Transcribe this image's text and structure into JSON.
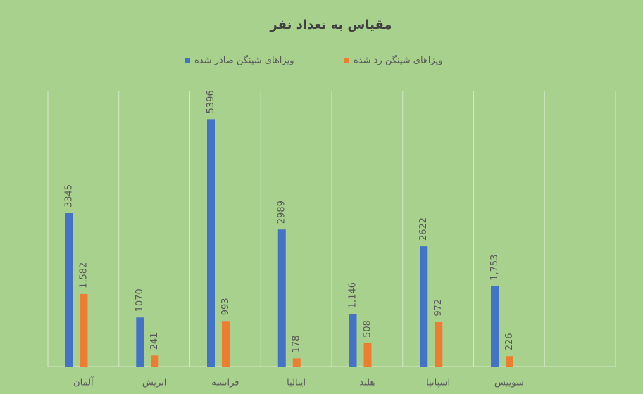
{
  "chart_data": {
    "type": "bar",
    "title": "مقیاس به تعداد نفر",
    "categories": [
      "آلمان",
      "اتریش",
      "فرانسه",
      "ایتالیا",
      "هلند",
      "اسپانیا",
      "سوییس",
      null
    ],
    "series": [
      {
        "name": "ویزاهای شینگن صادر شده",
        "color": "#4472c4",
        "values": [
          3345,
          1070,
          5396,
          2989,
          1146,
          2622,
          1753,
          null
        ],
        "value_labels": [
          "3345",
          "1070",
          "5396",
          "2989",
          "1,146",
          "2622",
          "1,753",
          null
        ]
      },
      {
        "name": "ویزاهای شینگن رد شده",
        "color": "#ed7d31",
        "values": [
          1582,
          241,
          993,
          178,
          508,
          972,
          226,
          null
        ],
        "value_labels": [
          "1,582",
          "241",
          "993",
          "178",
          "508",
          "972",
          "226",
          null
        ]
      }
    ],
    "ylim": [
      0,
      6000
    ]
  }
}
